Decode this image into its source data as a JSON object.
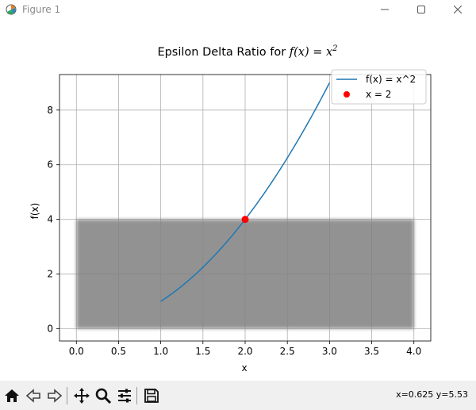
{
  "window": {
    "title": "Figure 1",
    "icon": "matplotlib-icon",
    "controls": [
      "minimize-icon",
      "maximize-icon",
      "close-icon"
    ]
  },
  "toolbar": {
    "buttons": [
      "home-icon",
      "back-icon",
      "forward-icon",
      "pan-icon",
      "zoom-icon",
      "configure-subplots-icon",
      "save-icon"
    ],
    "coords": "x=0.625 y=5.53"
  },
  "colors": {
    "line": "#1f77b4",
    "point": "#ff0000",
    "fill": "#808080",
    "grid": "#b0b0b0"
  },
  "chart_data": {
    "type": "line",
    "title_prefix": "Epsilon Delta Ratio for ",
    "title_math": "f(x) = x",
    "title_sup": "2",
    "xlabel": "x",
    "ylabel": "f(x)",
    "xlim": [
      -0.2,
      4.2
    ],
    "ylim": [
      -0.45,
      9.3
    ],
    "xticks": [
      0.0,
      0.5,
      1.0,
      1.5,
      2.0,
      2.5,
      3.0,
      3.5,
      4.0
    ],
    "xtick_labels": [
      "0.0",
      "0.5",
      "1.0",
      "1.5",
      "2.0",
      "2.5",
      "3.0",
      "3.5",
      "4.0"
    ],
    "yticks": [
      0,
      2,
      4,
      6,
      8
    ],
    "ytick_labels": [
      "0",
      "2",
      "4",
      "6",
      "8"
    ],
    "grid": true,
    "legend_position": "upper-right",
    "series": [
      {
        "name": "f(x) = x^2",
        "kind": "line",
        "x_range": [
          1,
          3
        ],
        "function": "x^2"
      },
      {
        "name": "x = 2",
        "kind": "point",
        "x": [
          2
        ],
        "y": [
          4
        ]
      }
    ],
    "shaded_region": {
      "x": [
        0,
        4
      ],
      "y": [
        0,
        4
      ]
    }
  }
}
